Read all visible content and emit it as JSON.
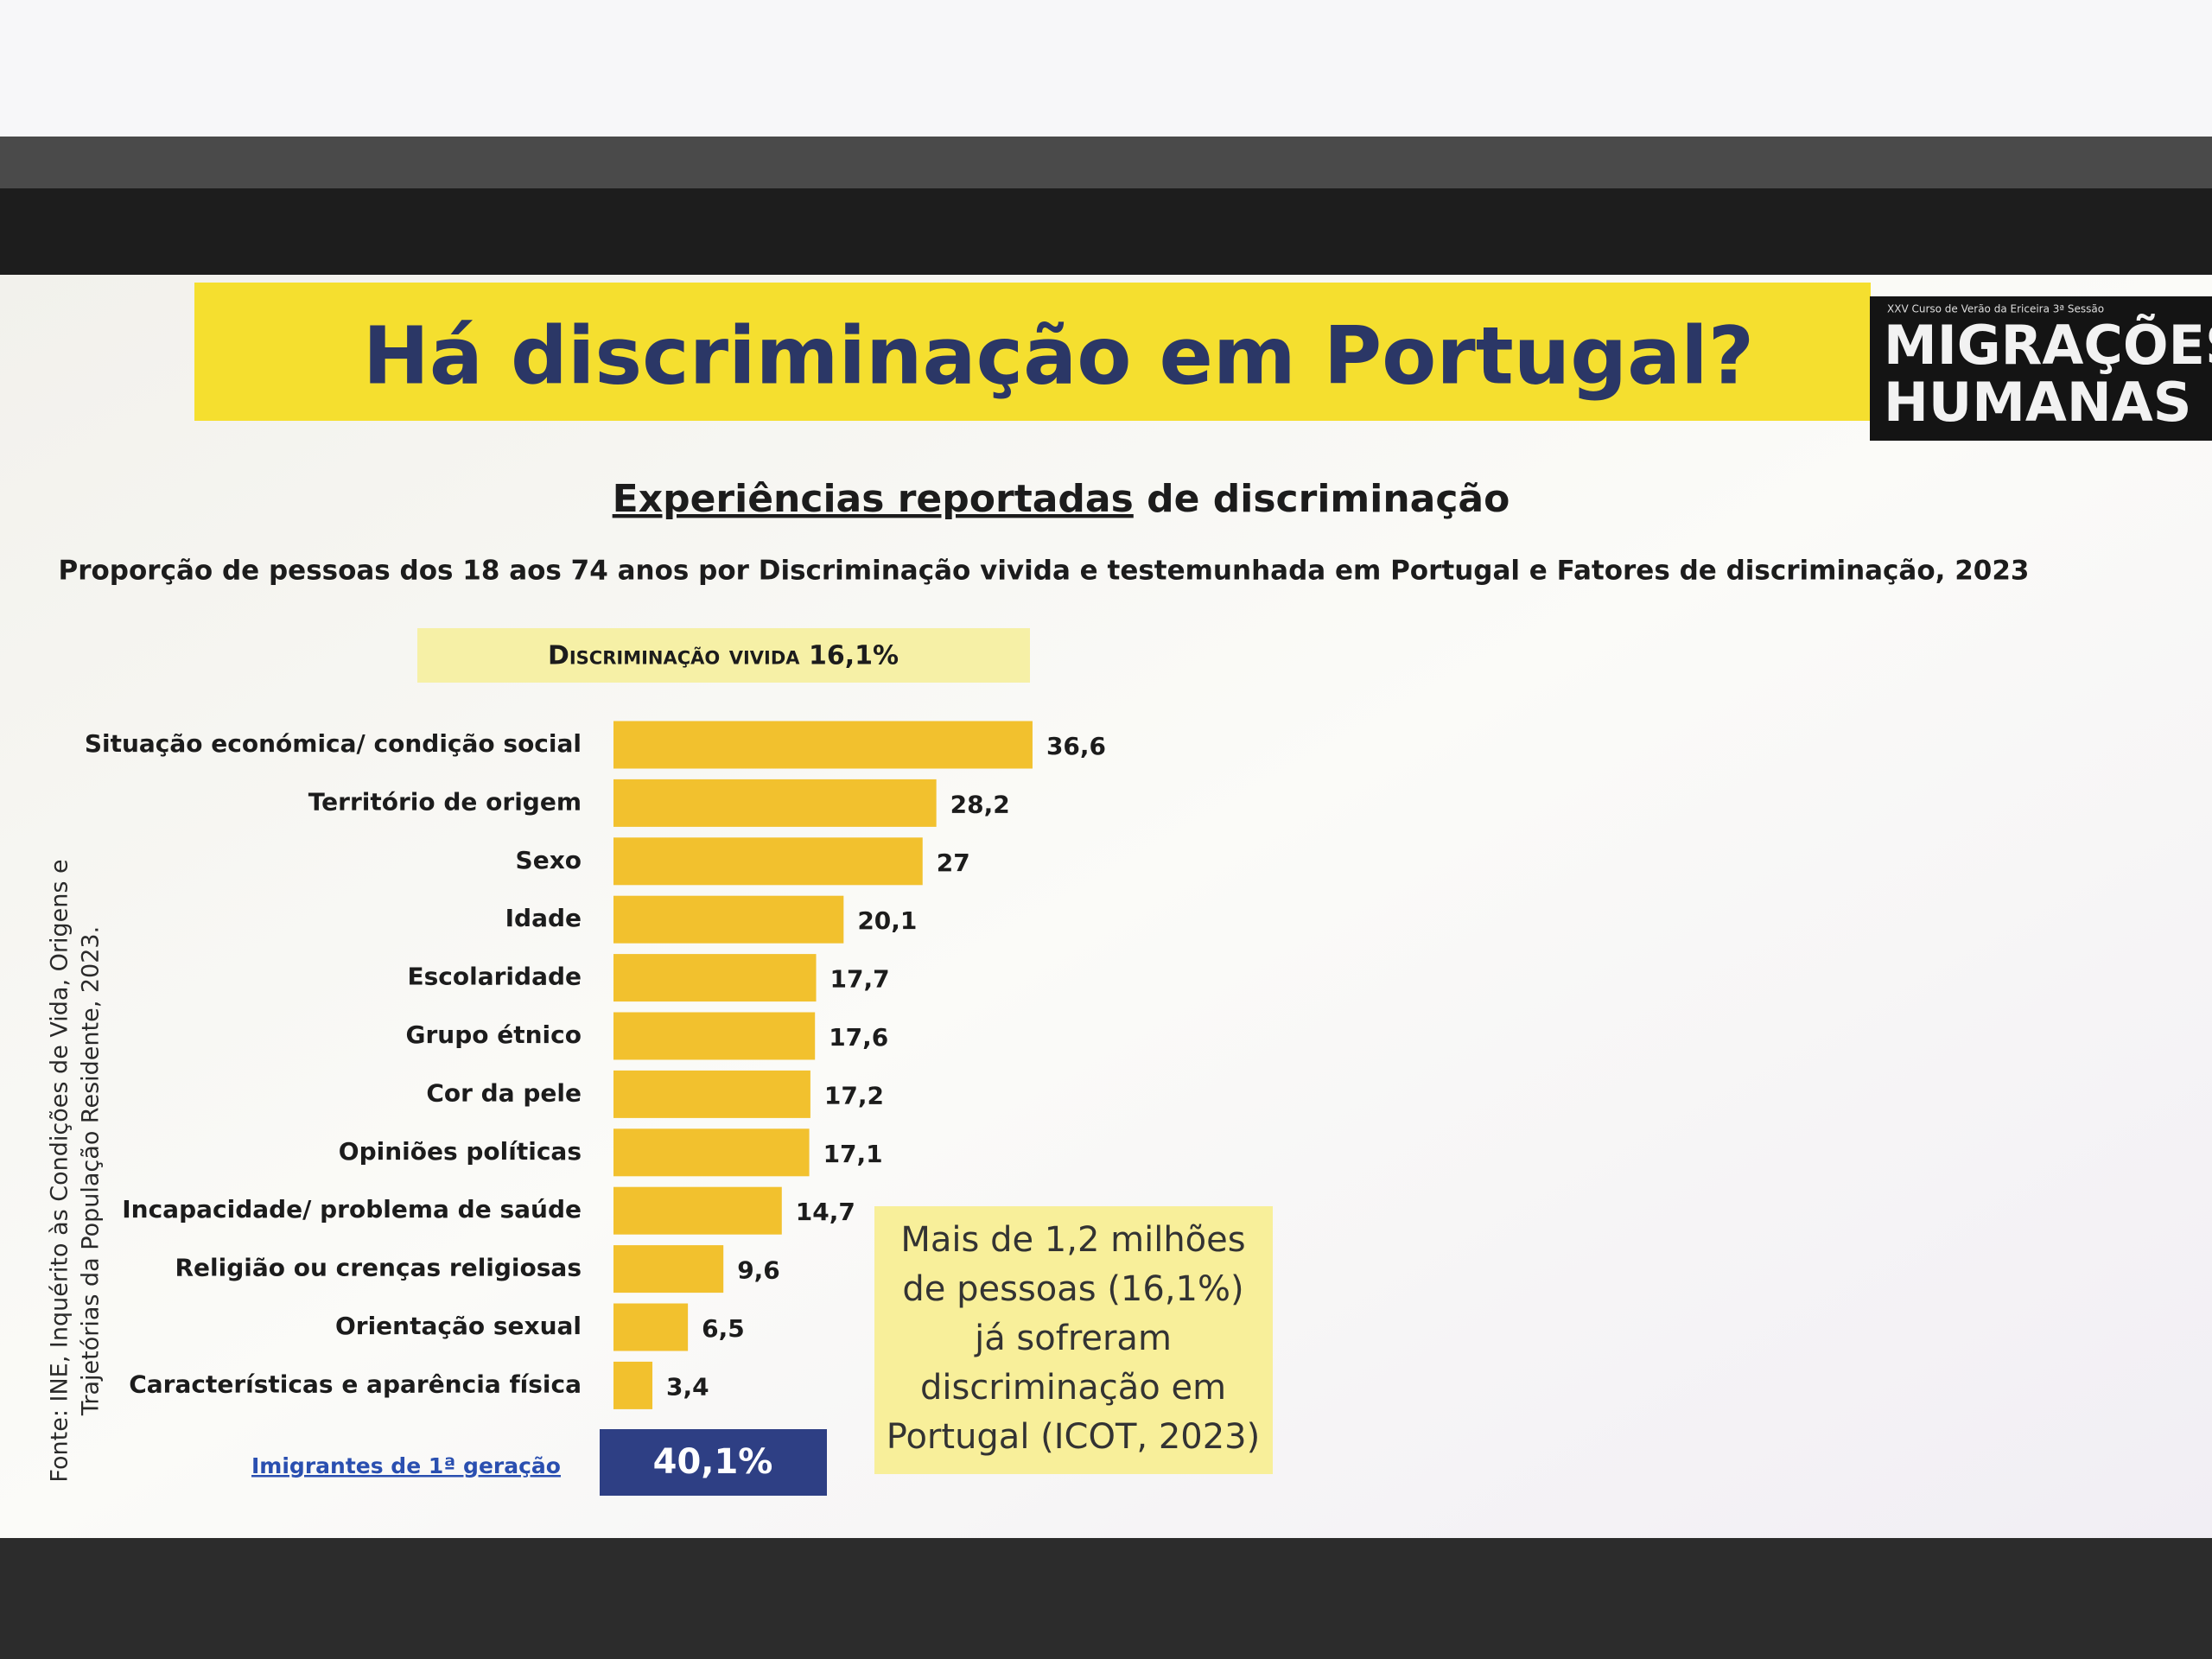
{
  "slide": {
    "title": "Há discriminação em Portugal?",
    "logo_caption": "XXV Curso de Verão da Ericeira 3ª Sessão",
    "logo_lines": [
      "MIGRAÇÕES",
      "HUMANAS"
    ],
    "heading_underlined": "Experiências reportadas",
    "heading_rest": " de discriminação",
    "source_lines": [
      "Fonte: INE, Inquérito às Condições de Vida, Origens e",
      "Trajetórias da População Residente, 2023."
    ],
    "immigrants_label": "Imigrantes de 1ª geração",
    "immigrants_value": "40,1%",
    "callout_lines": [
      "Mais de 1,2 milhões",
      "de pessoas (16,1%)",
      "já sofreram",
      "discriminação em",
      "Portugal (ICOT, 2023)"
    ]
  },
  "chart_data": {
    "type": "hbar",
    "title": "Proporção de pessoas dos 18 aos 74 anos por Discriminação vivida e testemunhada em Portugal e Fatores de discriminação, 2023",
    "subtitle": "Discriminação vivida 16,1%",
    "categories": [
      "Situação económica/ condição social",
      "Território de origem",
      "Sexo",
      "Idade",
      "Escolaridade",
      "Grupo étnico",
      "Cor da pele",
      "Opiniões políticas",
      "Incapacidade/ problema de saúde",
      "Religião ou crenças religiosas",
      "Orientação sexual",
      "Características e aparência física"
    ],
    "values": [
      36.6,
      28.2,
      27,
      20.1,
      17.7,
      17.6,
      17.2,
      17.1,
      14.7,
      9.6,
      6.5,
      3.4
    ],
    "value_labels": [
      "36,6",
      "28,2",
      "27",
      "20,1",
      "17,7",
      "17,6",
      "17,2",
      "17,1",
      "14,7",
      "9,6",
      "6,5",
      "3,4"
    ],
    "color": "#f2c12e"
  }
}
